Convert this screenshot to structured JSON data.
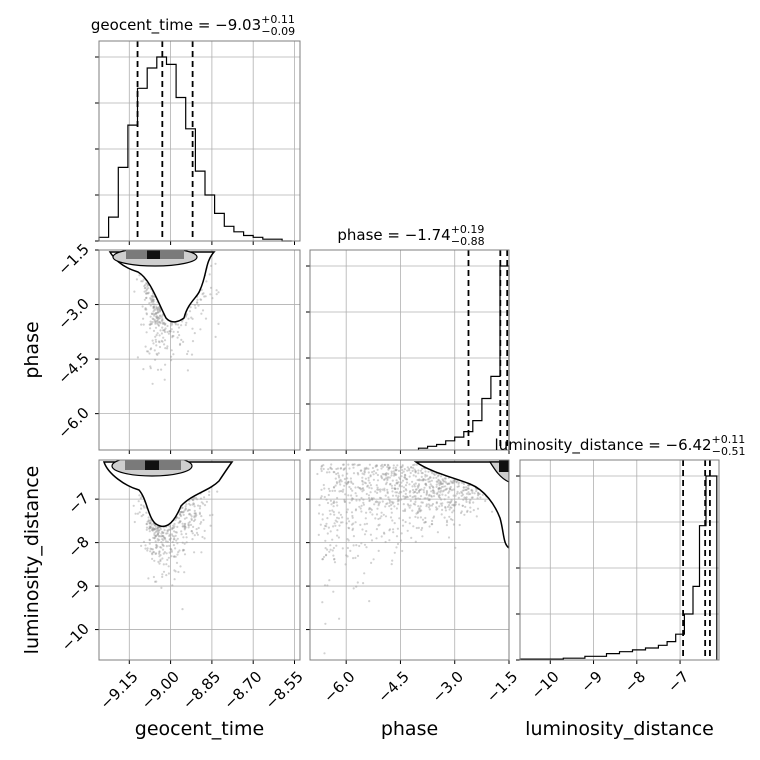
{
  "chart_data": {
    "type": "corner",
    "parameters": [
      {
        "name": "geocent_time",
        "axis_label": "geocent_time",
        "median": -9.03,
        "plus": "0.11",
        "minus": "0.09",
        "title_main": "geocent_time = −9.03",
        "title_sup": "+0.11",
        "title_sub": "−0.09",
        "quantiles": [
          -9.12,
          -9.03,
          -8.92
        ],
        "range": [
          -9.26,
          -8.53
        ],
        "ticks": [
          -9.15,
          -9.0,
          -8.85,
          -8.7,
          -8.55
        ],
        "tick_labels": [
          "−9.15",
          "−9.00",
          "−8.85",
          "−8.70",
          "−8.55"
        ],
        "hist_edges": [
          -9.26,
          -9.225,
          -9.19,
          -9.155,
          -9.12,
          -9.085,
          -9.05,
          -9.015,
          -8.98,
          -8.945,
          -8.91,
          -8.875,
          -8.84,
          -8.805,
          -8.77,
          -8.735,
          -8.7,
          -8.665,
          -8.63,
          -8.595,
          -8.56
        ],
        "hist_values": [
          0.02,
          0.13,
          0.4,
          0.63,
          0.83,
          0.94,
          1.0,
          0.96,
          0.78,
          0.61,
          0.38,
          0.25,
          0.15,
          0.08,
          0.05,
          0.03,
          0.02,
          0.01,
          0.01,
          0.0
        ]
      },
      {
        "name": "phase",
        "axis_label": "phase",
        "median": -1.74,
        "plus": "0.19",
        "minus": "0.88",
        "title_main": "phase = −1.74",
        "title_sup": "+0.19",
        "title_sub": "−0.88",
        "quantiles": [
          -2.62,
          -1.74,
          -1.55
        ],
        "range": [
          -7.0,
          -1.5
        ],
        "ticks": [
          -6.0,
          -4.5,
          -3.0,
          -1.5
        ],
        "tick_labels": [
          "−6.0",
          "−4.5",
          "−3.0",
          "−1.5"
        ],
        "hist_edges": [
          -4.0,
          -3.75,
          -3.5,
          -3.25,
          -3.0,
          -2.75,
          -2.5,
          -2.25,
          -2.0,
          -1.75,
          -1.5
        ],
        "hist_values": [
          0.01,
          0.02,
          0.03,
          0.05,
          0.07,
          0.1,
          0.16,
          0.28,
          0.4,
          1.0
        ]
      },
      {
        "name": "luminosity_distance",
        "axis_label": "luminosity_distance",
        "median": -6.42,
        "plus": "0.11",
        "minus": "0.51",
        "title_main": "luminosity_distance = −6.42",
        "title_sup": "+0.11",
        "title_sub": "−0.51",
        "quantiles": [
          -6.93,
          -6.42,
          -6.31
        ],
        "range": [
          -10.7,
          -6.1
        ],
        "ticks": [
          -10,
          -9,
          -8,
          -7
        ],
        "tick_labels": [
          "−10",
          "−9",
          "−8",
          "−7"
        ],
        "hist_edges": [
          -10.7,
          -9.7,
          -9.2,
          -8.7,
          -8.4,
          -8.1,
          -7.8,
          -7.5,
          -7.3,
          -7.1,
          -6.9,
          -6.7,
          -6.55,
          -6.4,
          -6.25,
          -6.15
        ],
        "hist_values": [
          0.005,
          0.01,
          0.02,
          0.035,
          0.045,
          0.055,
          0.065,
          0.08,
          0.1,
          0.14,
          0.25,
          0.4,
          0.73,
          1.0,
          1.0
        ]
      }
    ],
    "y_axis_labels": {
      "phase": [
        "−1.5",
        "−3.0",
        "−4.5",
        "−6.0"
      ],
      "luminosity_distance": [
        "−7",
        "−8",
        "−9",
        "−10"
      ]
    },
    "grid": true,
    "colors": {
      "hist": "#000000",
      "scatter": "#9a9a9a",
      "density_dark": "#111111",
      "frame": "#7f7f7f",
      "grid": "#b0b0b0"
    }
  }
}
